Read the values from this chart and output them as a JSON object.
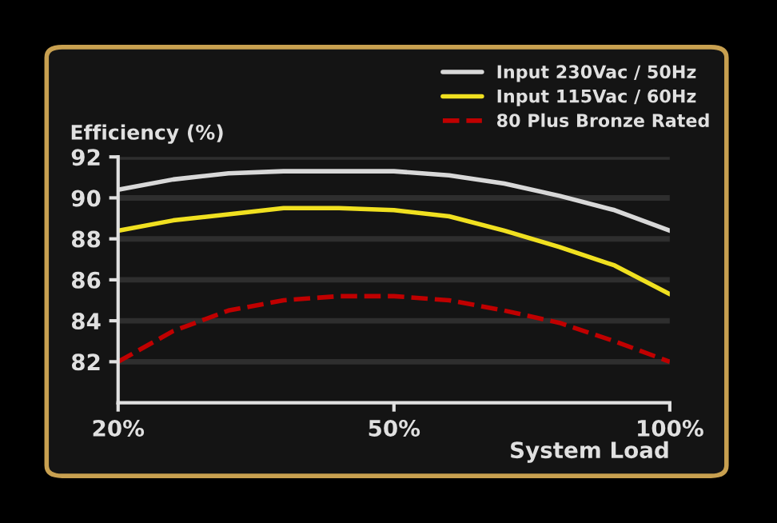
{
  "chart_data": {
    "type": "line",
    "ylabel": "Efficiency (%)",
    "xlabel": "System Load",
    "categories": [
      "20%",
      null,
      null,
      null,
      null,
      "50%",
      null,
      null,
      null,
      null,
      "100%"
    ],
    "series": [
      {
        "name": "Input 230Vac / 50Hz",
        "color": "#d8d8d8",
        "line_style": "solid",
        "values": [
          90.4,
          90.9,
          91.2,
          91.3,
          91.3,
          91.3,
          91.1,
          90.7,
          90.1,
          89.4,
          88.4
        ]
      },
      {
        "name": "Input 115Vac / 60Hz",
        "color": "#f0e020",
        "line_style": "solid",
        "values": [
          88.4,
          88.9,
          89.2,
          89.5,
          89.5,
          89.4,
          89.1,
          88.4,
          87.6,
          86.7,
          85.3
        ]
      },
      {
        "name": "80 Plus Bronze Rated",
        "color": "#c00000",
        "line_style": "dashed",
        "values": [
          82.0,
          83.5,
          84.5,
          85.0,
          85.2,
          85.2,
          85.0,
          84.5,
          83.9,
          83.0,
          82.0
        ]
      }
    ],
    "ylim": [
      80,
      92
    ],
    "yticks": [
      82,
      84,
      86,
      88,
      90,
      92
    ],
    "grid": "y",
    "legend": "top right",
    "marker": "none"
  }
}
